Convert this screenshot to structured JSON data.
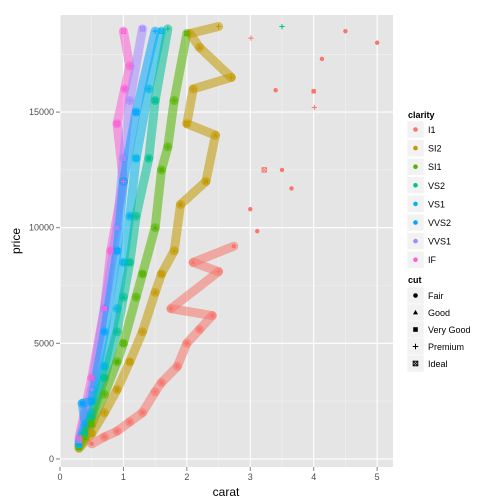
{
  "chart_data": {
    "type": "scatter",
    "title": "",
    "xlabel": "carat",
    "ylabel": "price",
    "xlim": [
      0,
      5.25
    ],
    "ylim": [
      -350,
      19200
    ],
    "x_ticks": [
      0,
      1,
      2,
      3,
      4,
      5
    ],
    "x_tick_labels": [
      "0",
      "1",
      "2",
      "3",
      "4",
      "5"
    ],
    "y_ticks": [
      0,
      5000,
      10000,
      15000
    ],
    "y_tick_labels": [
      "0",
      "5000",
      "10000",
      "15000"
    ],
    "grid": true,
    "background": "#e5e5e5",
    "legend_placement": "right",
    "colors": {
      "I1": "#f8766d",
      "SI2": "#c49a00",
      "SI1": "#53b400",
      "VS2": "#00c094",
      "VS1": "#00b6eb",
      "VVS2": "#06a4ff",
      "VVS1": "#a58aff",
      "IF": "#fb61d7"
    },
    "color_legend": {
      "title": "clarity",
      "entries": [
        "I1",
        "SI2",
        "SI1",
        "VS2",
        "VS1",
        "VVS2",
        "VVS1",
        "IF"
      ]
    },
    "shape_legend": {
      "title": "cut",
      "entries": [
        {
          "label": "Fair",
          "shape": "circle"
        },
        {
          "label": "Good",
          "shape": "triangle"
        },
        {
          "label": "Very Good",
          "shape": "square"
        },
        {
          "label": "Premium",
          "shape": "plus"
        },
        {
          "label": "Ideal",
          "shape": "square-x"
        }
      ]
    },
    "series": [
      {
        "name": "I1",
        "points": [
          {
            "x": 5.0,
            "y": 18000,
            "cut": "Fair"
          },
          {
            "x": 4.5,
            "y": 18500,
            "cut": "Fair"
          },
          {
            "x": 4.13,
            "y": 17300,
            "cut": "Fair"
          },
          {
            "x": 4.01,
            "y": 15200,
            "cut": "Premium"
          },
          {
            "x": 4.0,
            "y": 15900,
            "cut": "Very Good"
          },
          {
            "x": 3.65,
            "y": 11700,
            "cut": "Fair"
          },
          {
            "x": 3.4,
            "y": 15950,
            "cut": "Fair"
          },
          {
            "x": 3.5,
            "y": 12500,
            "cut": "Fair"
          },
          {
            "x": 3.01,
            "y": 18200,
            "cut": "Premium"
          },
          {
            "x": 3.11,
            "y": 9850,
            "cut": "Fair"
          },
          {
            "x": 3.22,
            "y": 12500,
            "cut": "Ideal"
          },
          {
            "x": 3.0,
            "y": 10800,
            "cut": "Fair"
          },
          {
            "x": 2.74,
            "y": 9200,
            "cut": "Fair"
          },
          {
            "x": 2.5,
            "y": 8100,
            "cut": "Premium"
          },
          {
            "x": 2.4,
            "y": 6200,
            "cut": "Fair"
          },
          {
            "x": 2.2,
            "y": 5600,
            "cut": "Fair"
          },
          {
            "x": 2.0,
            "y": 5000,
            "cut": "Fair"
          },
          {
            "x": 1.85,
            "y": 4000,
            "cut": "Fair"
          },
          {
            "x": 1.6,
            "y": 3300,
            "cut": "Fair"
          },
          {
            "x": 1.5,
            "y": 2900,
            "cut": "Premium"
          },
          {
            "x": 1.3,
            "y": 2000,
            "cut": "Fair"
          },
          {
            "x": 1.1,
            "y": 1600,
            "cut": "Fair"
          },
          {
            "x": 0.9,
            "y": 1200,
            "cut": "Fair"
          },
          {
            "x": 0.7,
            "y": 950,
            "cut": "Fair"
          },
          {
            "x": 0.5,
            "y": 650,
            "cut": "Fair"
          },
          {
            "x": 2.1,
            "y": 8500,
            "cut": "Good"
          },
          {
            "x": 1.75,
            "y": 6500,
            "cut": "Fair"
          }
        ]
      },
      {
        "name": "SI2",
        "points": [
          {
            "x": 2.5,
            "y": 18700,
            "cut": "Premium"
          },
          {
            "x": 2.2,
            "y": 17800,
            "cut": "Good"
          },
          {
            "x": 2.1,
            "y": 16000,
            "cut": "Premium"
          },
          {
            "x": 2.3,
            "y": 12000,
            "cut": "Very Good"
          },
          {
            "x": 2.0,
            "y": 14500,
            "cut": "Ideal"
          },
          {
            "x": 1.9,
            "y": 11000,
            "cut": "Fair"
          },
          {
            "x": 1.8,
            "y": 9000,
            "cut": "Premium"
          },
          {
            "x": 1.6,
            "y": 8000,
            "cut": "Ideal"
          },
          {
            "x": 1.5,
            "y": 7200,
            "cut": "Good"
          },
          {
            "x": 1.3,
            "y": 5500,
            "cut": "Premium"
          },
          {
            "x": 1.1,
            "y": 4200,
            "cut": "Ideal"
          },
          {
            "x": 0.9,
            "y": 3000,
            "cut": "Very Good"
          },
          {
            "x": 0.7,
            "y": 2000,
            "cut": "Premium"
          },
          {
            "x": 0.5,
            "y": 1100,
            "cut": "Ideal"
          },
          {
            "x": 0.3,
            "y": 450,
            "cut": "Good"
          },
          {
            "x": 2.7,
            "y": 16500,
            "cut": "Premium"
          },
          {
            "x": 2.45,
            "y": 14000,
            "cut": "Good"
          },
          {
            "x": 2.05,
            "y": 18400,
            "cut": "Premium"
          }
        ]
      },
      {
        "name": "SI1",
        "points": [
          {
            "x": 2.0,
            "y": 18400,
            "cut": "Ideal"
          },
          {
            "x": 1.8,
            "y": 15500,
            "cut": "Premium"
          },
          {
            "x": 1.6,
            "y": 12500,
            "cut": "Very Good"
          },
          {
            "x": 1.5,
            "y": 10000,
            "cut": "Good"
          },
          {
            "x": 1.3,
            "y": 8000,
            "cut": "Ideal"
          },
          {
            "x": 1.2,
            "y": 7000,
            "cut": "Premium"
          },
          {
            "x": 1.0,
            "y": 5000,
            "cut": "Ideal"
          },
          {
            "x": 0.9,
            "y": 4200,
            "cut": "Very Good"
          },
          {
            "x": 0.7,
            "y": 2800,
            "cut": "Premium"
          },
          {
            "x": 0.5,
            "y": 1500,
            "cut": "Ideal"
          },
          {
            "x": 0.4,
            "y": 900,
            "cut": "Good"
          },
          {
            "x": 0.3,
            "y": 500,
            "cut": "Ideal"
          },
          {
            "x": 1.7,
            "y": 13500,
            "cut": "Premium"
          }
        ]
      },
      {
        "name": "VS2",
        "points": [
          {
            "x": 3.5,
            "y": 18700,
            "cut": "Premium"
          },
          {
            "x": 1.7,
            "y": 18600,
            "cut": "Premium"
          },
          {
            "x": 1.5,
            "y": 15500,
            "cut": "Ideal"
          },
          {
            "x": 1.4,
            "y": 13000,
            "cut": "Very Good"
          },
          {
            "x": 1.2,
            "y": 10500,
            "cut": "Premium"
          },
          {
            "x": 1.1,
            "y": 8500,
            "cut": "Ideal"
          },
          {
            "x": 1.0,
            "y": 7000,
            "cut": "Good"
          },
          {
            "x": 0.9,
            "y": 5500,
            "cut": "Premium"
          },
          {
            "x": 0.7,
            "y": 3500,
            "cut": "Ideal"
          },
          {
            "x": 0.5,
            "y": 1800,
            "cut": "Very Good"
          },
          {
            "x": 0.4,
            "y": 1100,
            "cut": "Ideal"
          },
          {
            "x": 0.3,
            "y": 550,
            "cut": "Premium"
          }
        ]
      },
      {
        "name": "VS1",
        "points": [
          {
            "x": 1.6,
            "y": 18500,
            "cut": "Ideal"
          },
          {
            "x": 1.4,
            "y": 16000,
            "cut": "Premium"
          },
          {
            "x": 1.2,
            "y": 13000,
            "cut": "Ideal"
          },
          {
            "x": 1.1,
            "y": 10500,
            "cut": "Very Good"
          },
          {
            "x": 1.0,
            "y": 8500,
            "cut": "Ideal"
          },
          {
            "x": 0.9,
            "y": 6500,
            "cut": "Premium"
          },
          {
            "x": 0.7,
            "y": 4000,
            "cut": "Ideal"
          },
          {
            "x": 0.5,
            "y": 2000,
            "cut": "Good"
          },
          {
            "x": 0.3,
            "y": 600,
            "cut": "Ideal"
          }
        ]
      },
      {
        "name": "VVS2",
        "points": [
          {
            "x": 1.5,
            "y": 18500,
            "cut": "Premium"
          },
          {
            "x": 1.2,
            "y": 15000,
            "cut": "Ideal"
          },
          {
            "x": 1.0,
            "y": 12000,
            "cut": "Premium"
          },
          {
            "x": 0.9,
            "y": 9000,
            "cut": "Ideal"
          },
          {
            "x": 0.7,
            "y": 5500,
            "cut": "Very Good"
          },
          {
            "x": 0.5,
            "y": 2500,
            "cut": "Ideal"
          },
          {
            "x": 0.4,
            "y": 1500,
            "cut": "Good"
          },
          {
            "x": 0.35,
            "y": 2400,
            "cut": "Very Good"
          },
          {
            "x": 0.3,
            "y": 700,
            "cut": "Ideal"
          }
        ]
      },
      {
        "name": "VVS1",
        "points": [
          {
            "x": 1.3,
            "y": 18600,
            "cut": "Ideal"
          },
          {
            "x": 1.1,
            "y": 15500,
            "cut": "Premium"
          },
          {
            "x": 1.0,
            "y": 13000,
            "cut": "Ideal"
          },
          {
            "x": 0.9,
            "y": 10000,
            "cut": "Very Good"
          },
          {
            "x": 0.7,
            "y": 6500,
            "cut": "Ideal"
          },
          {
            "x": 0.5,
            "y": 3000,
            "cut": "Premium"
          },
          {
            "x": 0.3,
            "y": 800,
            "cut": "Ideal"
          }
        ]
      },
      {
        "name": "IF",
        "points": [
          {
            "x": 1.0,
            "y": 18500,
            "cut": "Ideal"
          },
          {
            "x": 1.1,
            "y": 17000,
            "cut": "Premium"
          },
          {
            "x": 0.9,
            "y": 14500,
            "cut": "Ideal"
          },
          {
            "x": 1.0,
            "y": 12000,
            "cut": "Premium"
          },
          {
            "x": 0.8,
            "y": 9000,
            "cut": "Ideal"
          },
          {
            "x": 0.7,
            "y": 6500,
            "cut": "Very Good"
          },
          {
            "x": 0.5,
            "y": 3500,
            "cut": "Ideal"
          },
          {
            "x": 0.3,
            "y": 900,
            "cut": "Ideal"
          },
          {
            "x": 1.02,
            "y": 16000,
            "cut": "Very Good"
          }
        ]
      }
    ]
  }
}
